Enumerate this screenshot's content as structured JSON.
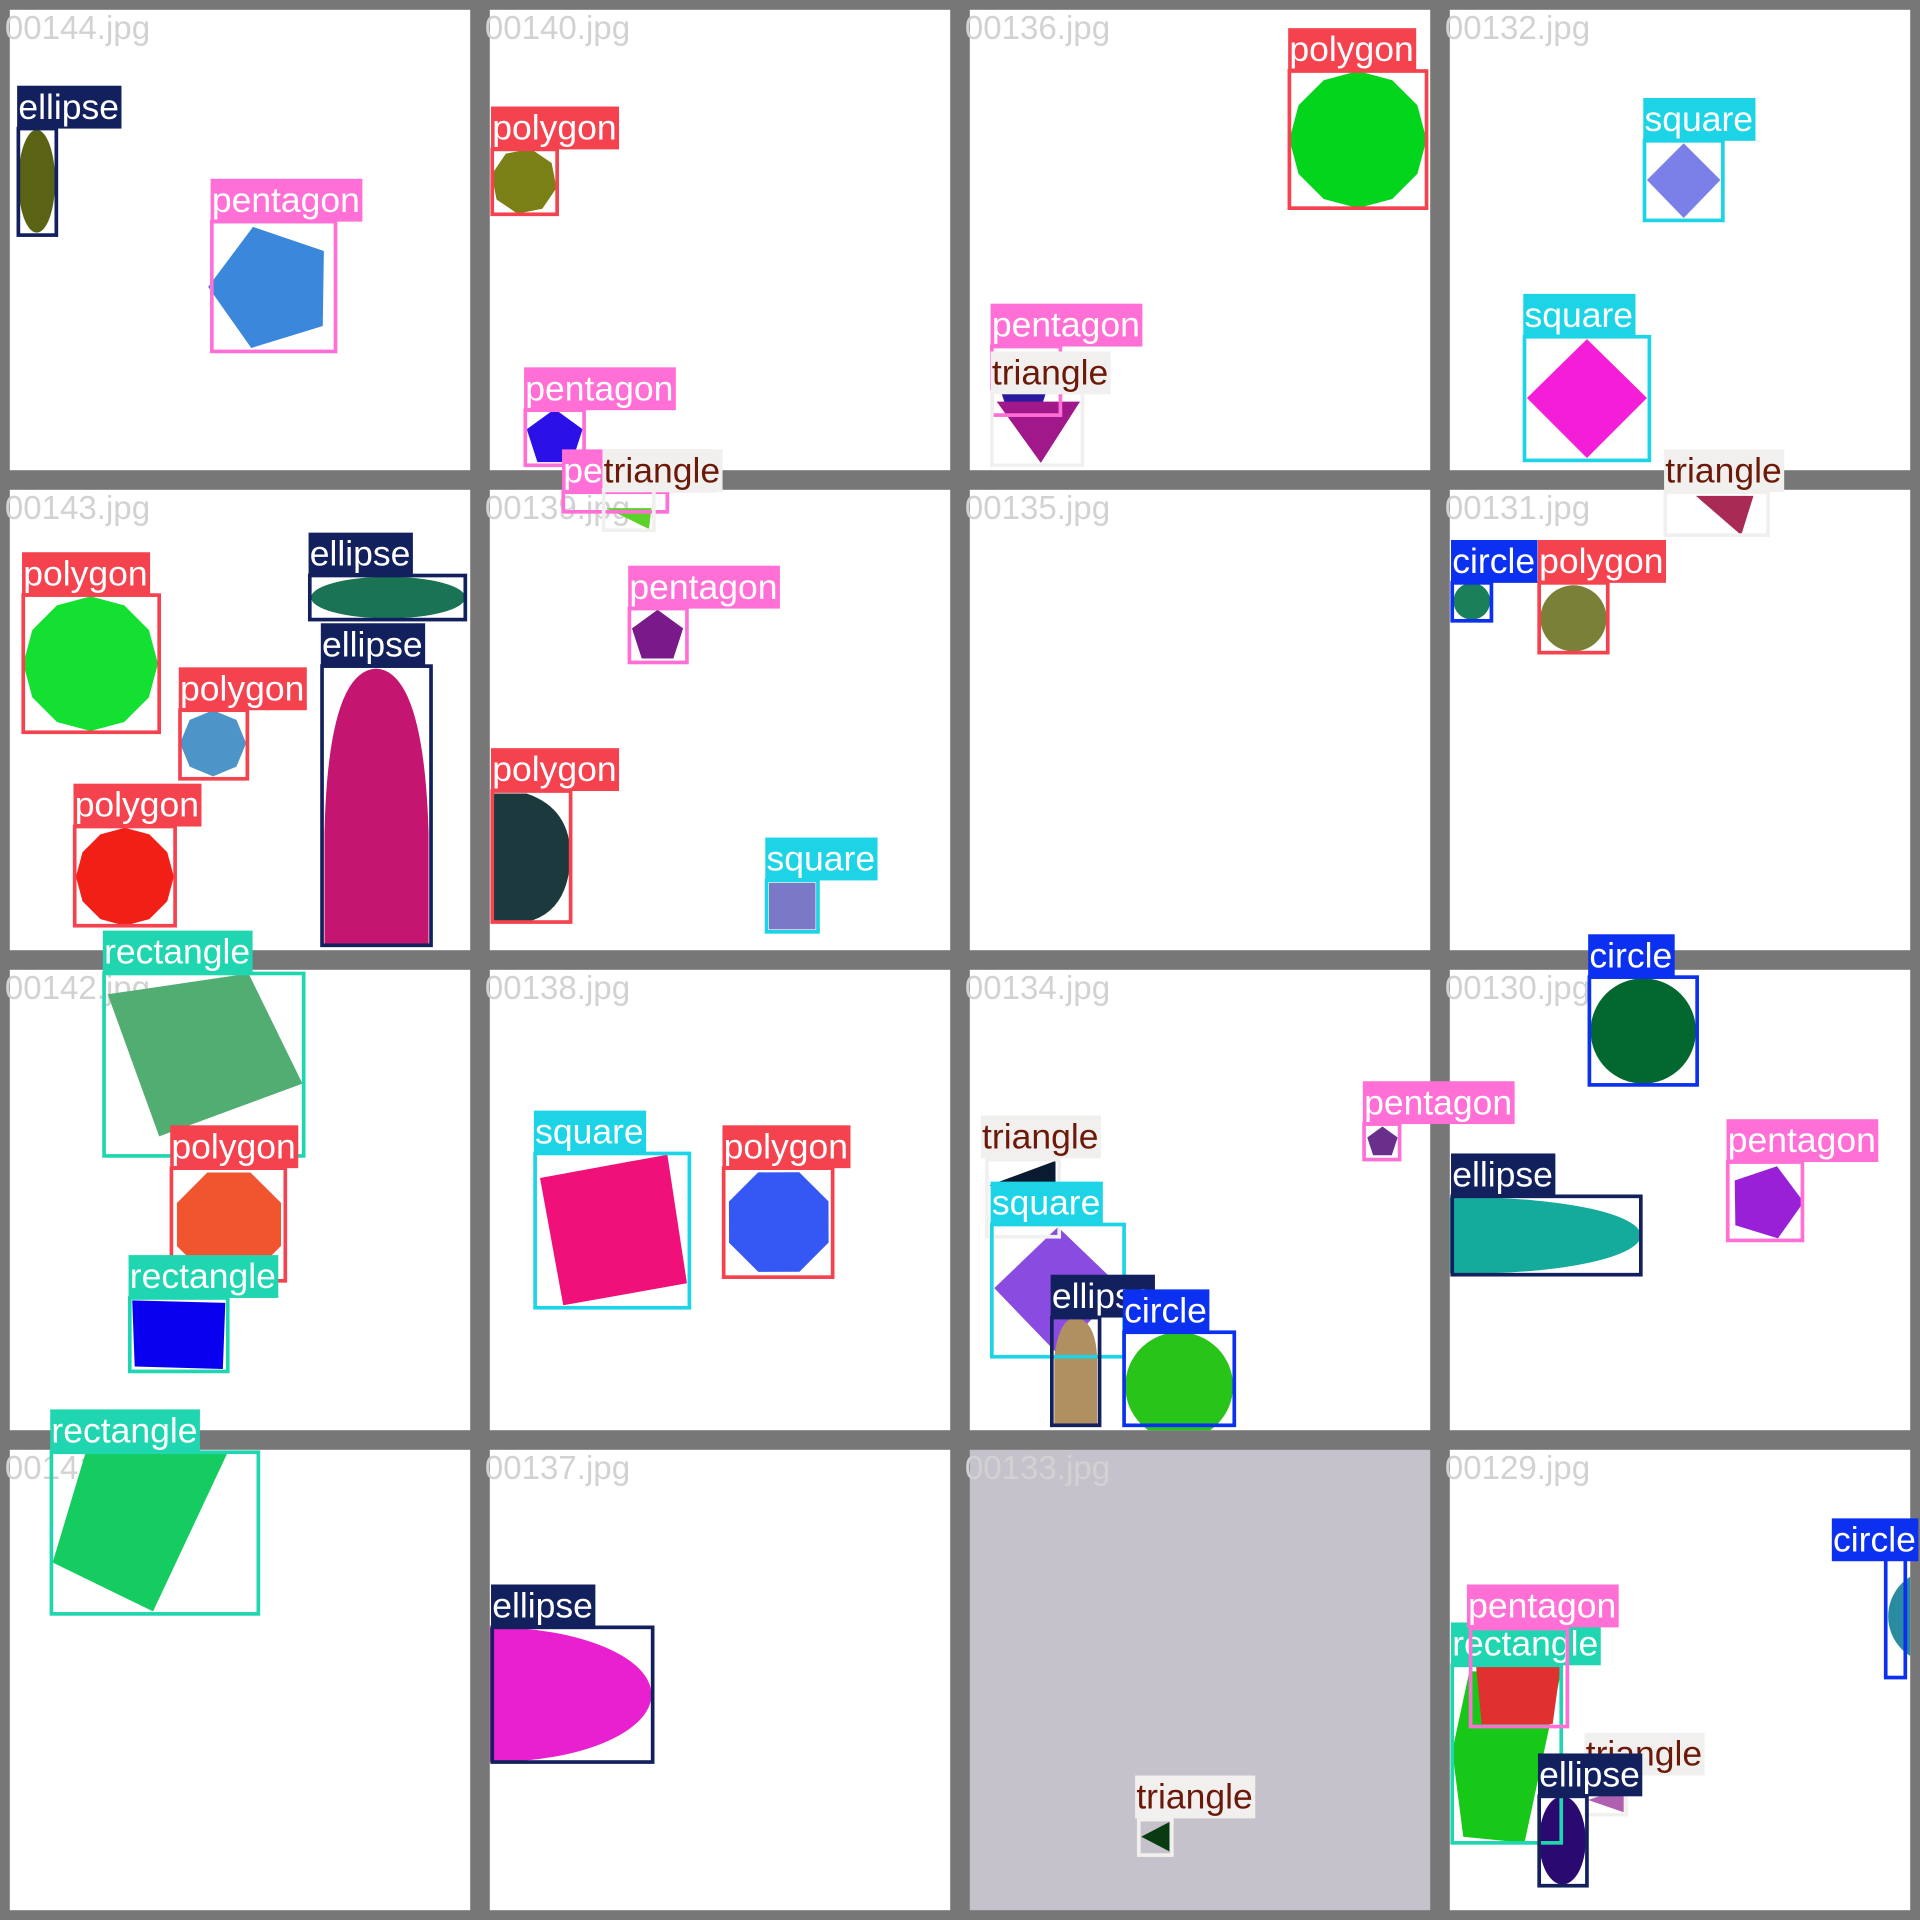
{
  "tiles": [
    {
      "filename": "00144.jpg",
      "objects": [
        {
          "label": "ellipse",
          "color": "#13205e",
          "text_color": "#ffffff"
        },
        {
          "label": "pentagon",
          "color": "#ff6fd6",
          "text_color": "#ffffff"
        }
      ]
    },
    {
      "filename": "00140.jpg",
      "objects": [
        {
          "label": "polygon",
          "color": "#f4424e",
          "text_color": "#ffffff"
        },
        {
          "label": "pentagon",
          "color": "#ff6fd6",
          "text_color": "#ffffff"
        }
      ]
    },
    {
      "filename": "00136.jpg",
      "objects": [
        {
          "label": "polygon",
          "color": "#f4424e",
          "text_color": "#ffffff"
        },
        {
          "label": "pentagon",
          "color": "#ff6fd6",
          "text_color": "#ffffff"
        },
        {
          "label": "triangle",
          "color": "#f2f0ee",
          "text_color": "#6b1a0a"
        }
      ]
    },
    {
      "filename": "00132.jpg",
      "objects": [
        {
          "label": "square",
          "color": "#1cd4e6",
          "text_color": "#ffffff"
        },
        {
          "label": "square",
          "color": "#1cd4e6",
          "text_color": "#ffffff"
        }
      ]
    },
    {
      "filename": "00143.jpg",
      "objects": [
        {
          "label": "polygon",
          "color": "#f4424e",
          "text_color": "#ffffff"
        },
        {
          "label": "polygon",
          "color": "#f4424e",
          "text_color": "#ffffff"
        },
        {
          "label": "polygon",
          "color": "#f4424e",
          "text_color": "#ffffff"
        },
        {
          "label": "ellipse",
          "color": "#13205e",
          "text_color": "#ffffff"
        },
        {
          "label": "ellipse",
          "color": "#13205e",
          "text_color": "#ffffff"
        }
      ]
    },
    {
      "filename": "00139.jpg",
      "objects": [
        {
          "label": "pentagon",
          "color": "#ff6fd6",
          "text_color": "#ffffff"
        },
        {
          "label": "triangle",
          "color": "#f2f0ee",
          "text_color": "#6b1a0a"
        },
        {
          "label": "pentagon",
          "color": "#ff6fd6",
          "text_color": "#ffffff"
        },
        {
          "label": "polygon",
          "color": "#f4424e",
          "text_color": "#ffffff"
        },
        {
          "label": "square",
          "color": "#1cd4e6",
          "text_color": "#ffffff"
        }
      ]
    },
    {
      "filename": "00135.jpg",
      "objects": []
    },
    {
      "filename": "00131.jpg",
      "objects": [
        {
          "label": "triangle",
          "color": "#f2f0ee",
          "text_color": "#6b1a0a"
        },
        {
          "label": "circle",
          "color": "#0b30f0",
          "text_color": "#ffffff"
        },
        {
          "label": "polygon",
          "color": "#f4424e",
          "text_color": "#ffffff"
        }
      ]
    },
    {
      "filename": "00142.jpg",
      "objects": [
        {
          "label": "rectangle",
          "color": "#1fd6b0",
          "text_color": "#ffffff"
        },
        {
          "label": "polygon",
          "color": "#f4424e",
          "text_color": "#ffffff"
        },
        {
          "label": "rectangle",
          "color": "#1fd6b0",
          "text_color": "#ffffff"
        }
      ]
    },
    {
      "filename": "00138.jpg",
      "objects": [
        {
          "label": "square",
          "color": "#1cd4e6",
          "text_color": "#ffffff"
        },
        {
          "label": "polygon",
          "color": "#f4424e",
          "text_color": "#ffffff"
        }
      ]
    },
    {
      "filename": "00134.jpg",
      "objects": [
        {
          "label": "pentagon",
          "color": "#ff6fd6",
          "text_color": "#ffffff"
        },
        {
          "label": "triangle",
          "color": "#f2f0ee",
          "text_color": "#6b1a0a"
        },
        {
          "label": "square",
          "color": "#1cd4e6",
          "text_color": "#ffffff"
        },
        {
          "label": "ellipse",
          "color": "#13205e",
          "text_color": "#ffffff"
        },
        {
          "label": "circle",
          "color": "#0b30f0",
          "text_color": "#ffffff"
        }
      ]
    },
    {
      "filename": "00130.jpg",
      "objects": [
        {
          "label": "circle",
          "color": "#0b30f0",
          "text_color": "#ffffff"
        },
        {
          "label": "ellipse",
          "color": "#13205e",
          "text_color": "#ffffff"
        },
        {
          "label": "pentagon",
          "color": "#ff6fd6",
          "text_color": "#ffffff"
        }
      ]
    },
    {
      "filename": "00141.jpg",
      "objects": [
        {
          "label": "rectangle",
          "color": "#1fd6b0",
          "text_color": "#ffffff"
        }
      ]
    },
    {
      "filename": "00137.jpg",
      "objects": [
        {
          "label": "ellipse",
          "color": "#13205e",
          "text_color": "#ffffff"
        }
      ]
    },
    {
      "filename": "00133.jpg",
      "background": "#c6c2cc",
      "objects": [
        {
          "label": "triangle",
          "color": "#f2f0ee",
          "text_color": "#6b1a0a"
        }
      ]
    },
    {
      "filename": "00129.jpg",
      "objects": [
        {
          "label": "circle",
          "color": "#0b30f0",
          "text_color": "#ffffff"
        },
        {
          "label": "rectangle",
          "color": "#1fd6b0",
          "text_color": "#ffffff"
        },
        {
          "label": "pentagon",
          "color": "#ff6fd6",
          "text_color": "#ffffff"
        },
        {
          "label": "triangle",
          "color": "#f2f0ee",
          "text_color": "#6b1a0a"
        },
        {
          "label": "ellipse",
          "color": "#13205e",
          "text_color": "#ffffff"
        }
      ]
    }
  ]
}
